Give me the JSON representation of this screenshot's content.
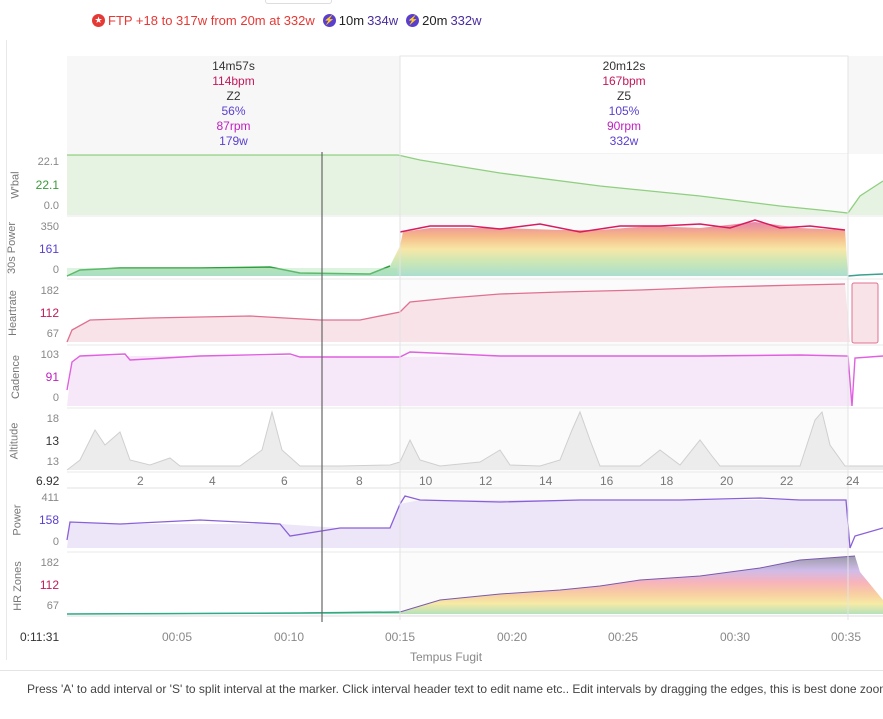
{
  "badges": {
    "ftp": "FTP +18 to 317w from 20m at 332w",
    "p10_label": "10m",
    "p10_value": "334w",
    "p20_label": "20m",
    "p20_value": "332w"
  },
  "intervals": [
    {
      "time": "14m57s",
      "hr": "114bpm",
      "zone": "Z2",
      "pct": "56%",
      "rpm": "87rpm",
      "watts": "179w"
    },
    {
      "time": "20m12s",
      "hr": "167bpm",
      "zone": "Z5",
      "pct": "105%",
      "rpm": "90rpm",
      "watts": "332w"
    }
  ],
  "panels": {
    "wbal": {
      "label": "W'bal",
      "top": "22.1",
      "cur": "22.1",
      "bottom": "0.0",
      "color": "#5aa64a"
    },
    "power30": {
      "label": "30s Power",
      "top": "350",
      "cur": "161",
      "bottom": "0",
      "color": "#5a3fcf"
    },
    "heartrate": {
      "label": "Heartrate",
      "top": "182",
      "cur": "112",
      "bottom": "67",
      "color": "#c2185b"
    },
    "cadence": {
      "label": "Cadence",
      "top": "103",
      "cur": "91",
      "bottom": "0",
      "color": "#c020c0"
    },
    "altitude": {
      "label": "Altitude",
      "top": "18",
      "cur": "13",
      "bottom": "13",
      "color": "#333333"
    },
    "power": {
      "label": "Power",
      "top": "411",
      "cur": "158",
      "bottom": "0",
      "color": "#5a3fcf"
    },
    "hrzones": {
      "label": "HR Zones",
      "top": "182",
      "cur": "112",
      "bottom": "67",
      "color": "#c2185b"
    }
  },
  "altitude_cursor": "6.92",
  "distance_ticks": [
    "2",
    "4",
    "6",
    "8",
    "10",
    "12",
    "14",
    "16",
    "18",
    "20",
    "22",
    "24"
  ],
  "time_cursor": "0:11:31",
  "time_ticks": [
    "00:05",
    "00:10",
    "00:15",
    "00:20",
    "00:25",
    "00:30",
    "00:35"
  ],
  "x_axis_title": "Tempus Fugit",
  "footer": "Press 'A' to add interval or 'S' to split interval at the marker. Click interval header text to edit name etc.. Edit intervals by dragging the edges, this is best done zoomed"
}
